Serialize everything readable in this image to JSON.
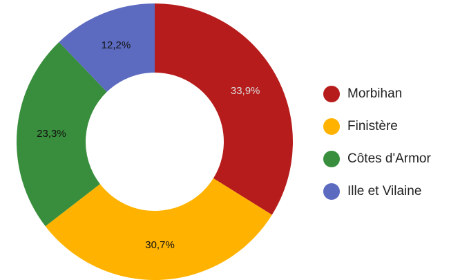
{
  "chart_data": {
    "type": "donut",
    "categories": [
      "Morbihan",
      "Finistère",
      "Côtes d'Armor",
      "Ille et Vilaine"
    ],
    "values": [
      33.9,
      30.7,
      23.3,
      12.2
    ],
    "value_labels": [
      "33,9%",
      "30,7%",
      "23,3%",
      "12,2%"
    ],
    "colors": [
      "#b71c1c",
      "#ffb300",
      "#388e3c",
      "#5c6bc0"
    ],
    "legend": "right"
  }
}
